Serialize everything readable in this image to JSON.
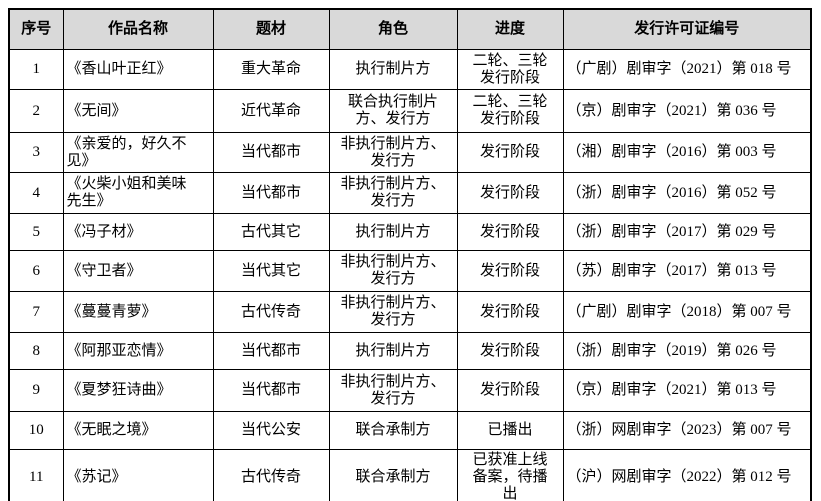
{
  "colors": {
    "header_bg": "#d9d9d9",
    "border": "#000000",
    "text": "#000000"
  },
  "table": {
    "columns": [
      {
        "label": "序号"
      },
      {
        "label": "作品名称"
      },
      {
        "label": "题材"
      },
      {
        "label": "角色"
      },
      {
        "label": "进度"
      },
      {
        "label": "发行许可证编号"
      }
    ],
    "rows": [
      {
        "no": "1",
        "name": "《香山叶正红》",
        "genre": "重大革命",
        "role": "执行制片方",
        "progress": "二轮、三轮\n发行阶段",
        "license": "（广剧）剧审字（2021）第 018 号"
      },
      {
        "no": "2",
        "name": "《无间》",
        "genre": "近代革命",
        "role": "联合执行制片\n方、发行方",
        "progress": "二轮、三轮\n发行阶段",
        "license": "（京）剧审字（2021）第 036 号"
      },
      {
        "no": "3",
        "name": "《亲爱的，好久不\n见》",
        "genre": "当代都市",
        "role": "非执行制片方、\n发行方",
        "progress": "发行阶段",
        "license": "（湘）剧审字（2016）第 003 号"
      },
      {
        "no": "4",
        "name": "《火柴小姐和美味\n先生》",
        "genre": "当代都市",
        "role": "非执行制片方、\n发行方",
        "progress": "发行阶段",
        "license": "（浙）剧审字（2016）第 052 号"
      },
      {
        "no": "5",
        "name": "《冯子材》",
        "genre": "古代其它",
        "role": "执行制片方",
        "progress": "发行阶段",
        "license": "（浙）剧审字（2017）第 029 号"
      },
      {
        "no": "6",
        "name": "《守卫者》",
        "genre": "当代其它",
        "role": "非执行制片方、\n发行方",
        "progress": "发行阶段",
        "license": "（苏）剧审字（2017）第 013 号"
      },
      {
        "no": "7",
        "name": "《蔓蔓青萝》",
        "genre": "古代传奇",
        "role": "非执行制片方、\n发行方",
        "progress": "发行阶段",
        "license": "（广剧）剧审字（2018）第 007 号"
      },
      {
        "no": "8",
        "name": "《阿那亚恋情》",
        "genre": "当代都市",
        "role": "执行制片方",
        "progress": "发行阶段",
        "license": "（浙）剧审字（2019）第 026 号"
      },
      {
        "no": "9",
        "name": "《夏梦狂诗曲》",
        "genre": "当代都市",
        "role": "非执行制片方、\n发行方",
        "progress": "发行阶段",
        "license": "（京）剧审字（2021）第 013 号"
      },
      {
        "no": "10",
        "name": "《无眠之境》",
        "genre": "当代公安",
        "role": "联合承制方",
        "progress": "已播出",
        "license": "（浙）网剧审字（2023）第 007 号"
      },
      {
        "no": "11",
        "name": "《苏记》",
        "genre": "古代传奇",
        "role": "联合承制方",
        "progress": "已获准上线\n备案，待播\n出",
        "license": "（沪）网剧审字（2022）第 012 号"
      }
    ]
  }
}
